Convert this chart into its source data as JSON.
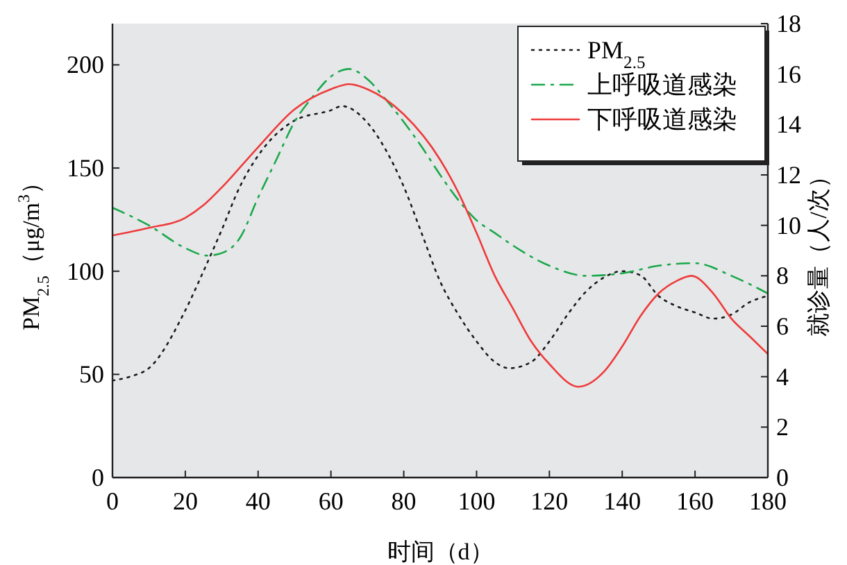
{
  "chart_data": {
    "type": "line",
    "xlabel": "时间（d）",
    "ylabel": "PM$_{2.5}$（μg/m$^{3}$）",
    "y2label": "就诊量（人/次）",
    "xlim": [
      0,
      180
    ],
    "xticks": [
      0,
      20,
      40,
      60,
      80,
      100,
      120,
      140,
      160,
      180
    ],
    "ylim": [
      0,
      220
    ],
    "yticks": [
      0,
      50,
      100,
      150,
      200
    ],
    "y2lim": [
      0,
      18
    ],
    "y2ticks": [
      0,
      2,
      4,
      6,
      8,
      10,
      12,
      14,
      16,
      18
    ],
    "grid": false,
    "legend": "top right",
    "series": [
      {
        "name": "PM$_{2.5}$",
        "color": "#1a1a1a",
        "line_style": "dotted",
        "x": [
          0,
          5,
          10,
          20,
          25,
          30,
          35,
          40,
          50,
          60,
          63,
          70,
          75,
          80,
          85,
          90,
          95,
          100,
          105,
          109,
          115,
          120,
          125,
          130,
          135,
          140,
          145,
          150,
          155,
          160,
          165,
          170,
          175,
          180
        ],
        "values": [
          47,
          49,
          53,
          81,
          100,
          120,
          141,
          156,
          173,
          178,
          180,
          172,
          159,
          141,
          118,
          95,
          79,
          66,
          56,
          53,
          56,
          66,
          79,
          90,
          97,
          100,
          98,
          88,
          83,
          80,
          77,
          79,
          85,
          88
        ]
      },
      {
        "name": "上呼吸道感染",
        "color": "#1aa84a",
        "line_style": "dashdot",
        "axis": "y2",
        "x": [
          0,
          10,
          20,
          26,
          30,
          35,
          40,
          45,
          50,
          55,
          60,
          65,
          70,
          75,
          80,
          85,
          90,
          95,
          100,
          105,
          110,
          120,
          130,
          140,
          150,
          160,
          170,
          180
        ],
        "values": [
          10.7,
          10.0,
          9.1,
          8.8,
          8.9,
          9.5,
          11.1,
          12.6,
          14.1,
          15.1,
          15.9,
          16.2,
          15.8,
          15.0,
          14.1,
          13.1,
          12.0,
          11.0,
          10.2,
          9.7,
          9.2,
          8.4,
          8.0,
          8.1,
          8.4,
          8.5,
          8.0,
          7.3
        ]
      },
      {
        "name": "下呼吸道感染",
        "color": "#ee3b3b",
        "line_style": "solid",
        "axis": "y2",
        "x": [
          0,
          10,
          20,
          25,
          30,
          40,
          50,
          60,
          65,
          70,
          80,
          90,
          95,
          100,
          105,
          110,
          115,
          120,
          128,
          135,
          140,
          145,
          150,
          155,
          159,
          165,
          170,
          175,
          180
        ],
        "values": [
          9.6,
          9.9,
          10.3,
          10.8,
          11.5,
          13.1,
          14.6,
          15.4,
          15.6,
          15.4,
          14.4,
          12.6,
          11.3,
          9.7,
          8.0,
          6.7,
          5.4,
          4.5,
          3.6,
          4.2,
          5.2,
          6.4,
          7.3,
          7.8,
          8.0,
          7.3,
          6.3,
          5.6,
          4.9
        ]
      }
    ]
  }
}
